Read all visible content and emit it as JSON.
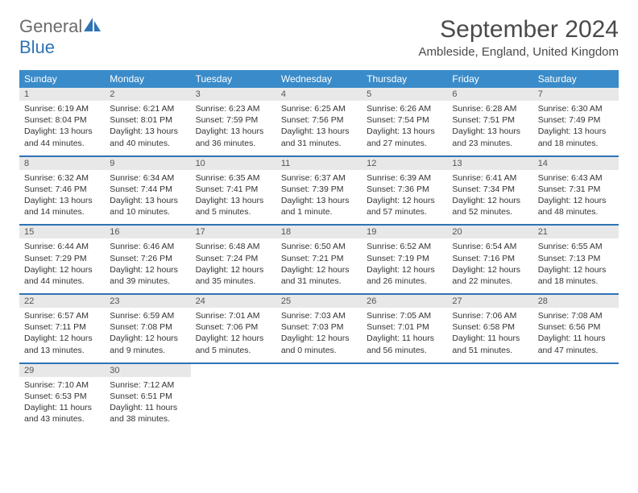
{
  "logo": {
    "part1": "General",
    "part2": "Blue"
  },
  "title": "September 2024",
  "location": "Ambleside, England, United Kingdom",
  "colors": {
    "header_bg": "#3a8bc9",
    "border": "#2f74b5",
    "daynum_bg": "#e8e8e8",
    "text": "#333333"
  },
  "weekdays": [
    "Sunday",
    "Monday",
    "Tuesday",
    "Wednesday",
    "Thursday",
    "Friday",
    "Saturday"
  ],
  "grid": [
    [
      {
        "n": "1",
        "sr": "6:19 AM",
        "ss": "8:04 PM",
        "dl": "13 hours and 44 minutes."
      },
      {
        "n": "2",
        "sr": "6:21 AM",
        "ss": "8:01 PM",
        "dl": "13 hours and 40 minutes."
      },
      {
        "n": "3",
        "sr": "6:23 AM",
        "ss": "7:59 PM",
        "dl": "13 hours and 36 minutes."
      },
      {
        "n": "4",
        "sr": "6:25 AM",
        "ss": "7:56 PM",
        "dl": "13 hours and 31 minutes."
      },
      {
        "n": "5",
        "sr": "6:26 AM",
        "ss": "7:54 PM",
        "dl": "13 hours and 27 minutes."
      },
      {
        "n": "6",
        "sr": "6:28 AM",
        "ss": "7:51 PM",
        "dl": "13 hours and 23 minutes."
      },
      {
        "n": "7",
        "sr": "6:30 AM",
        "ss": "7:49 PM",
        "dl": "13 hours and 18 minutes."
      }
    ],
    [
      {
        "n": "8",
        "sr": "6:32 AM",
        "ss": "7:46 PM",
        "dl": "13 hours and 14 minutes."
      },
      {
        "n": "9",
        "sr": "6:34 AM",
        "ss": "7:44 PM",
        "dl": "13 hours and 10 minutes."
      },
      {
        "n": "10",
        "sr": "6:35 AM",
        "ss": "7:41 PM",
        "dl": "13 hours and 5 minutes."
      },
      {
        "n": "11",
        "sr": "6:37 AM",
        "ss": "7:39 PM",
        "dl": "13 hours and 1 minute."
      },
      {
        "n": "12",
        "sr": "6:39 AM",
        "ss": "7:36 PM",
        "dl": "12 hours and 57 minutes."
      },
      {
        "n": "13",
        "sr": "6:41 AM",
        "ss": "7:34 PM",
        "dl": "12 hours and 52 minutes."
      },
      {
        "n": "14",
        "sr": "6:43 AM",
        "ss": "7:31 PM",
        "dl": "12 hours and 48 minutes."
      }
    ],
    [
      {
        "n": "15",
        "sr": "6:44 AM",
        "ss": "7:29 PM",
        "dl": "12 hours and 44 minutes."
      },
      {
        "n": "16",
        "sr": "6:46 AM",
        "ss": "7:26 PM",
        "dl": "12 hours and 39 minutes."
      },
      {
        "n": "17",
        "sr": "6:48 AM",
        "ss": "7:24 PM",
        "dl": "12 hours and 35 minutes."
      },
      {
        "n": "18",
        "sr": "6:50 AM",
        "ss": "7:21 PM",
        "dl": "12 hours and 31 minutes."
      },
      {
        "n": "19",
        "sr": "6:52 AM",
        "ss": "7:19 PM",
        "dl": "12 hours and 26 minutes."
      },
      {
        "n": "20",
        "sr": "6:54 AM",
        "ss": "7:16 PM",
        "dl": "12 hours and 22 minutes."
      },
      {
        "n": "21",
        "sr": "6:55 AM",
        "ss": "7:13 PM",
        "dl": "12 hours and 18 minutes."
      }
    ],
    [
      {
        "n": "22",
        "sr": "6:57 AM",
        "ss": "7:11 PM",
        "dl": "12 hours and 13 minutes."
      },
      {
        "n": "23",
        "sr": "6:59 AM",
        "ss": "7:08 PM",
        "dl": "12 hours and 9 minutes."
      },
      {
        "n": "24",
        "sr": "7:01 AM",
        "ss": "7:06 PM",
        "dl": "12 hours and 5 minutes."
      },
      {
        "n": "25",
        "sr": "7:03 AM",
        "ss": "7:03 PM",
        "dl": "12 hours and 0 minutes."
      },
      {
        "n": "26",
        "sr": "7:05 AM",
        "ss": "7:01 PM",
        "dl": "11 hours and 56 minutes."
      },
      {
        "n": "27",
        "sr": "7:06 AM",
        "ss": "6:58 PM",
        "dl": "11 hours and 51 minutes."
      },
      {
        "n": "28",
        "sr": "7:08 AM",
        "ss": "6:56 PM",
        "dl": "11 hours and 47 minutes."
      }
    ],
    [
      {
        "n": "29",
        "sr": "7:10 AM",
        "ss": "6:53 PM",
        "dl": "11 hours and 43 minutes."
      },
      {
        "n": "30",
        "sr": "7:12 AM",
        "ss": "6:51 PM",
        "dl": "11 hours and 38 minutes."
      },
      null,
      null,
      null,
      null,
      null
    ]
  ],
  "labels": {
    "sunrise": "Sunrise:",
    "sunset": "Sunset:",
    "daylight": "Daylight:"
  }
}
